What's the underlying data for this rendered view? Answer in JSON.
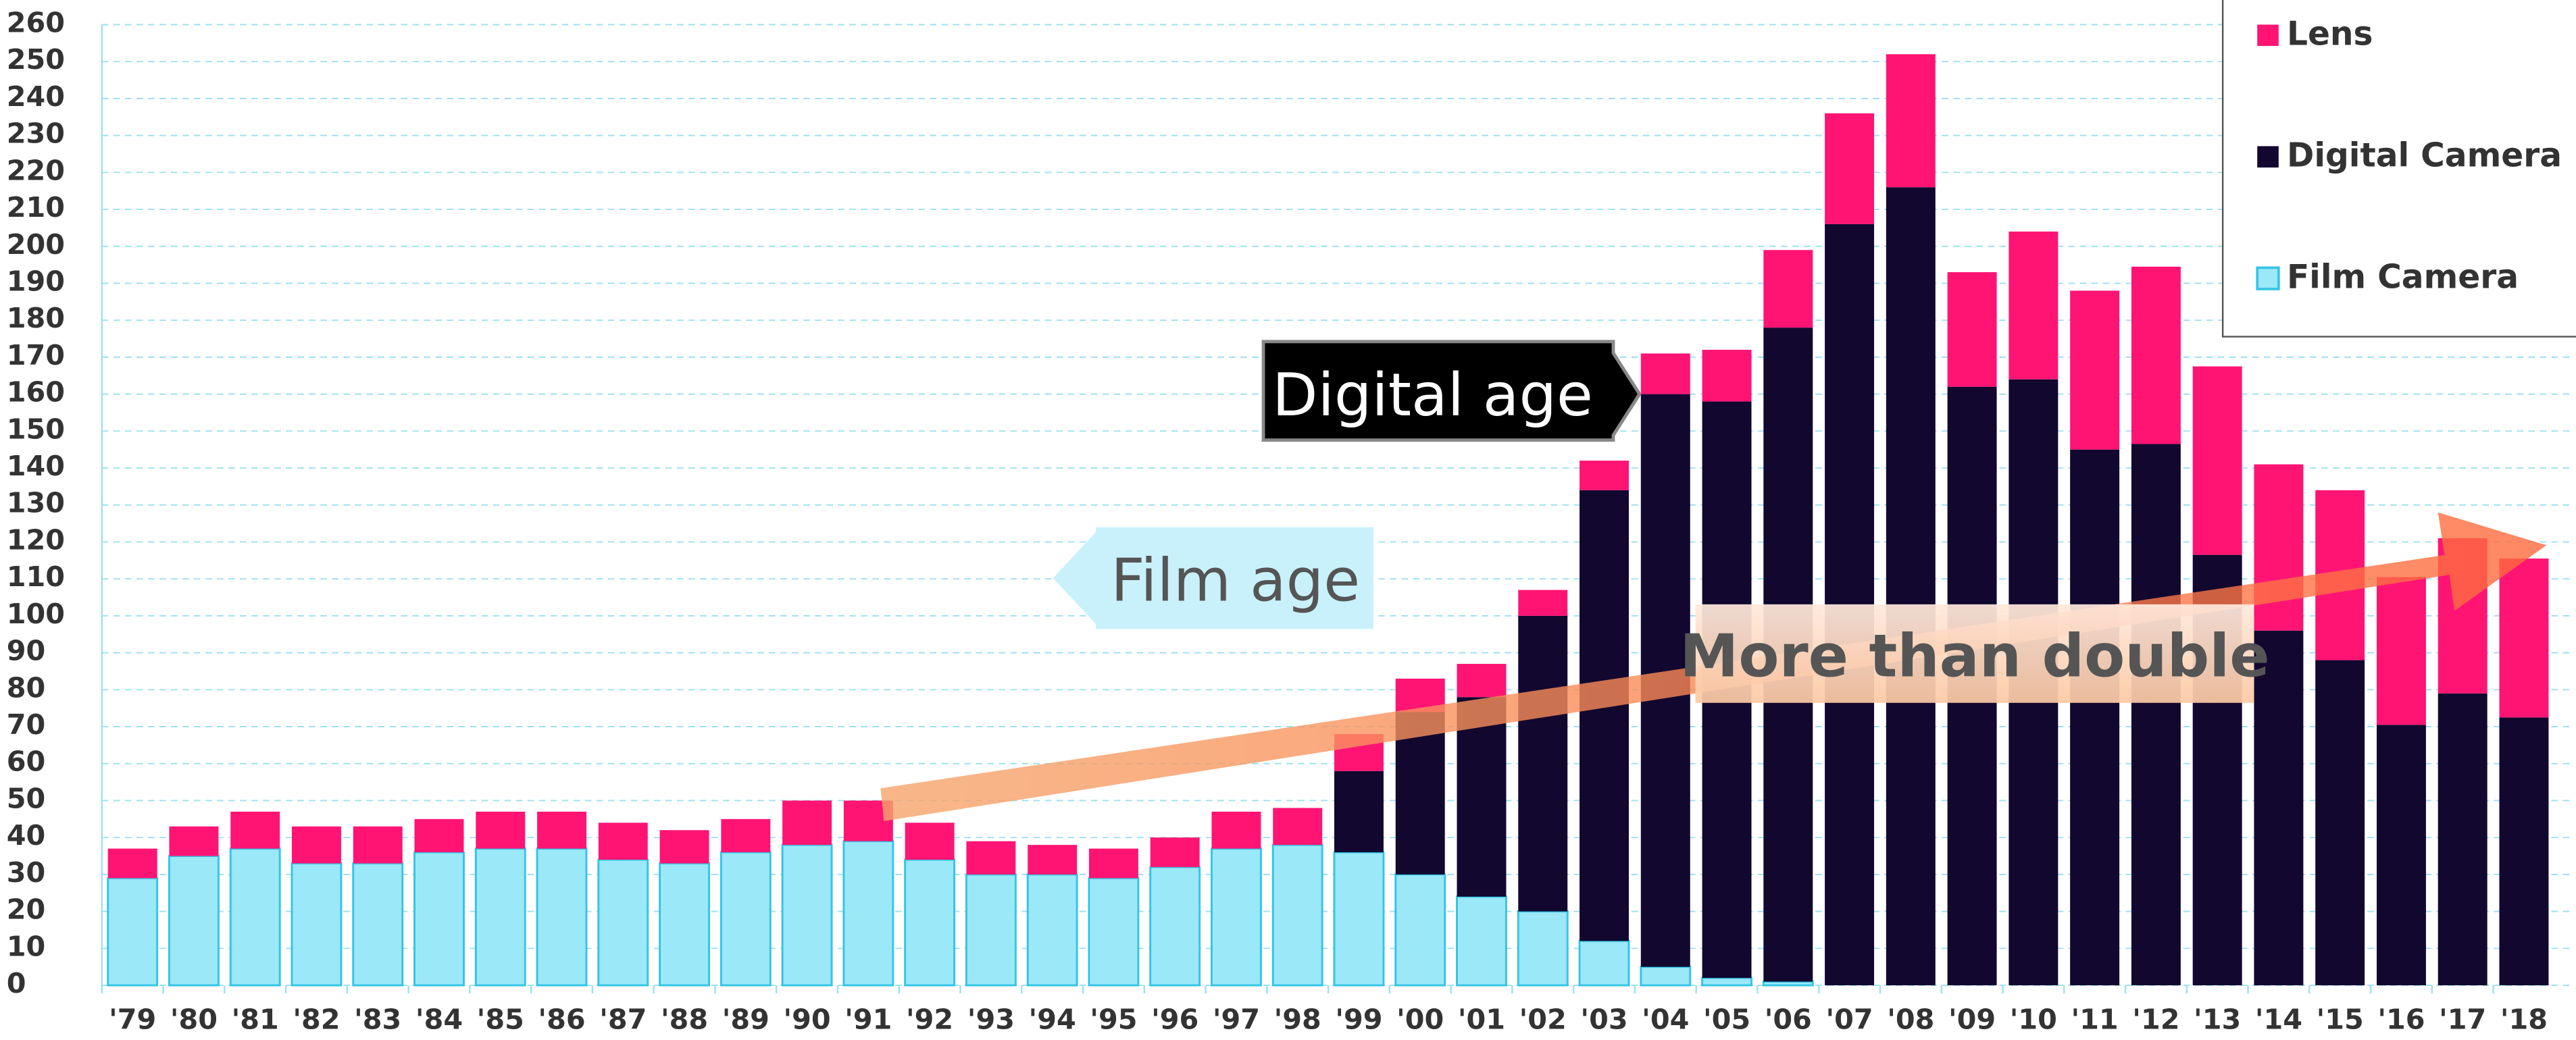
{
  "chart_data": {
    "type": "stacked_bar",
    "categories": [
      "'79",
      "'80",
      "'81",
      "'82",
      "'83",
      "'84",
      "'85",
      "'86",
      "'87",
      "'88",
      "'89",
      "'90",
      "'91",
      "'92",
      "'93",
      "'94",
      "'95",
      "'96",
      "'97",
      "'98",
      "'99",
      "'00",
      "'01",
      "'02",
      "'03",
      "'04",
      "'05",
      "'06",
      "'07",
      "'08",
      "'09",
      "'10",
      "'11",
      "'12",
      "'13",
      "'14",
      "'15",
      "'16",
      "'17",
      "'18"
    ],
    "series": [
      {
        "name": "Film Camera",
        "color": "#9be8f8",
        "values": [
          29,
          35,
          37,
          33,
          33,
          36,
          37,
          37,
          34,
          33,
          36,
          38,
          39,
          34,
          30,
          30,
          29,
          32,
          37,
          38,
          36,
          30,
          24,
          20,
          12,
          5,
          2,
          1,
          0,
          0,
          0,
          0,
          0,
          0,
          0,
          0,
          0,
          0,
          0,
          0
        ]
      },
      {
        "name": "Digital Camera",
        "color": "#12072f",
        "values": [
          0,
          0,
          0,
          0,
          0,
          0,
          0,
          0,
          0,
          0,
          0,
          0,
          0,
          0,
          0,
          0,
          0,
          0,
          0,
          0,
          22,
          44,
          54,
          80,
          122,
          155,
          156,
          177,
          206,
          216,
          162,
          164,
          145,
          146.5,
          116.5,
          96,
          88,
          70.5,
          79,
          72.5
        ]
      },
      {
        "name": "Lens",
        "color": "#ff1474",
        "values": [
          8,
          8,
          10,
          10,
          10,
          9,
          10,
          10,
          10,
          9,
          9,
          12,
          11,
          10,
          9,
          8,
          8,
          8,
          10,
          10,
          10,
          9,
          9,
          7,
          8,
          11,
          14,
          21,
          30,
          36,
          31,
          40,
          43,
          48,
          51,
          45,
          46,
          40,
          42,
          43
        ]
      }
    ],
    "ylim": [
      0,
      260
    ],
    "yticks": [
      0,
      10,
      20,
      30,
      40,
      50,
      60,
      70,
      80,
      90,
      100,
      110,
      120,
      130,
      140,
      150,
      160,
      170,
      180,
      190,
      200,
      210,
      220,
      230,
      240,
      250,
      260
    ],
    "grid": true,
    "legend": "top-right",
    "annotations": [
      "Digital age",
      "Film age",
      "More than double"
    ]
  }
}
